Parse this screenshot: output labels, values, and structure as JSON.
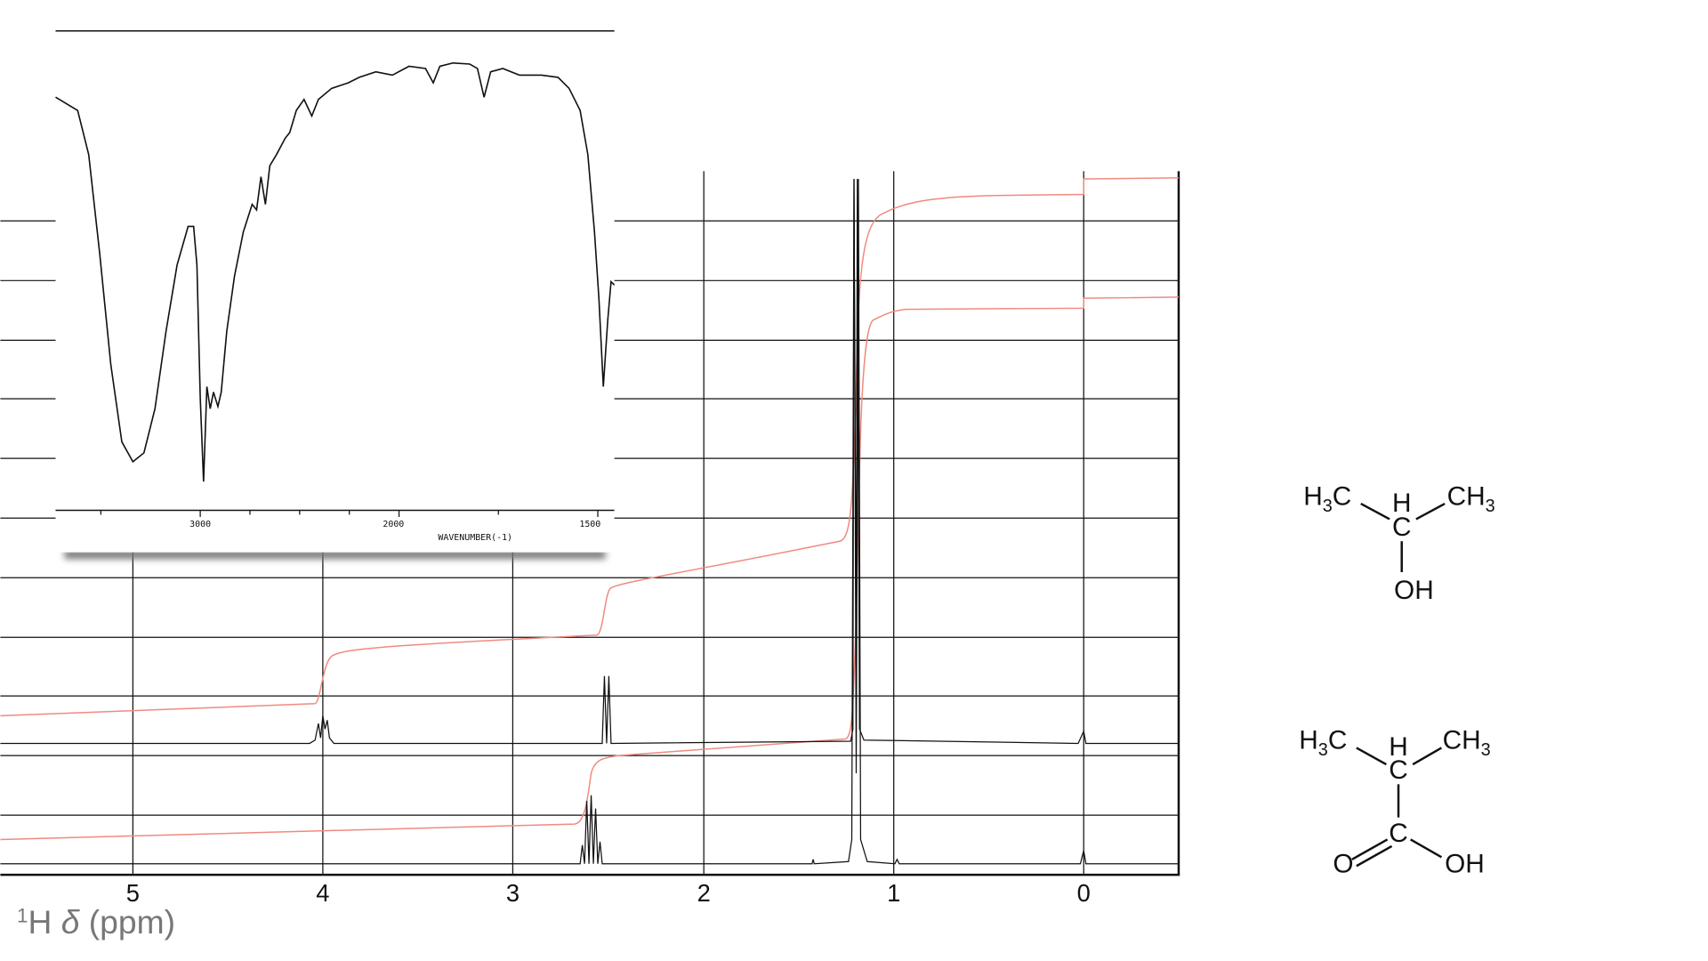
{
  "nmr": {
    "x_ticks": [
      "5",
      "4",
      "3",
      "2",
      "1",
      "0"
    ],
    "axis_label": {
      "superscript": "1",
      "nucleus": "H",
      "symbol": "δ",
      "unit": "(ppm)"
    }
  },
  "ir": {
    "x_ticks": [
      "3000",
      "2000",
      "1500"
    ],
    "axis_label": "WAVENUMBER(-1)"
  },
  "molecules": [
    {
      "left": [
        "H",
        "3",
        "C"
      ],
      "right": [
        "CH",
        "3"
      ],
      "center_h": "H",
      "center_c": "C",
      "bottom": "OH"
    },
    {
      "left": [
        "H",
        "3",
        "C"
      ],
      "right": [
        "CH",
        "3"
      ],
      "center_h": "H",
      "center_c": "C",
      "carbonyl_c": "C",
      "oxygen": "O",
      "hydroxyl": "OH"
    }
  ]
}
